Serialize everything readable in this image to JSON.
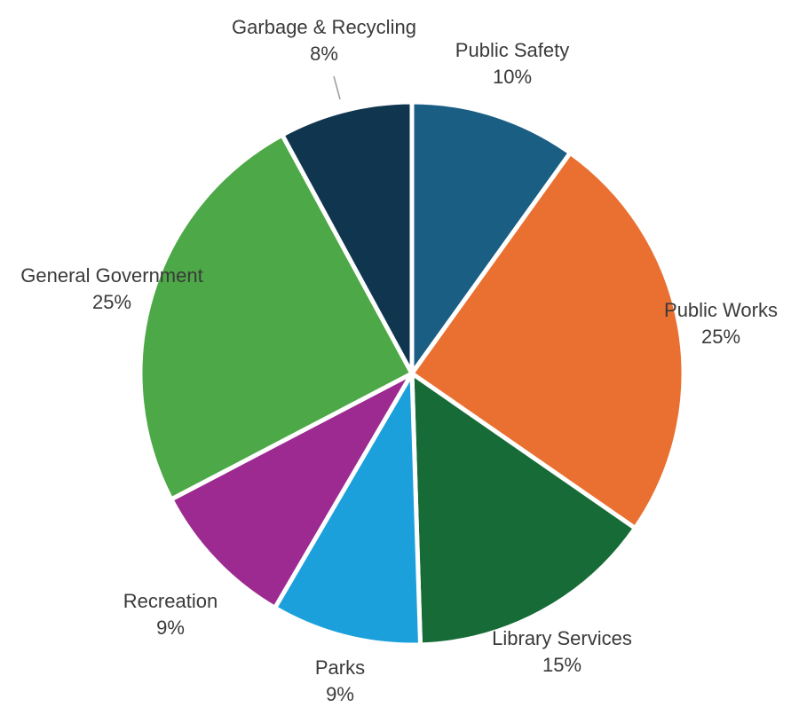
{
  "chart_data": {
    "type": "pie",
    "title": "",
    "slices": [
      {
        "label": "Public Safety",
        "value": 10,
        "value_label": "10%",
        "color": "#1B5E84"
      },
      {
        "label": "Public Works",
        "value": 25,
        "value_label": "25%",
        "color": "#EA7031"
      },
      {
        "label": "Library Services",
        "value": 15,
        "value_label": "15%",
        "color": "#176B37"
      },
      {
        "label": "Parks",
        "value": 9,
        "value_label": "9%",
        "color": "#1CA0DC"
      },
      {
        "label": "Recreation",
        "value": 9,
        "value_label": "9%",
        "color": "#9C2A90"
      },
      {
        "label": "General Government",
        "value": 25,
        "value_label": "25%",
        "color": "#4DA847"
      },
      {
        "label": "Garbage & Recycling",
        "value": 8,
        "value_label": "8%",
        "color": "#10364F"
      }
    ],
    "start": "top",
    "direction": "clockwise",
    "labels": "outside"
  }
}
